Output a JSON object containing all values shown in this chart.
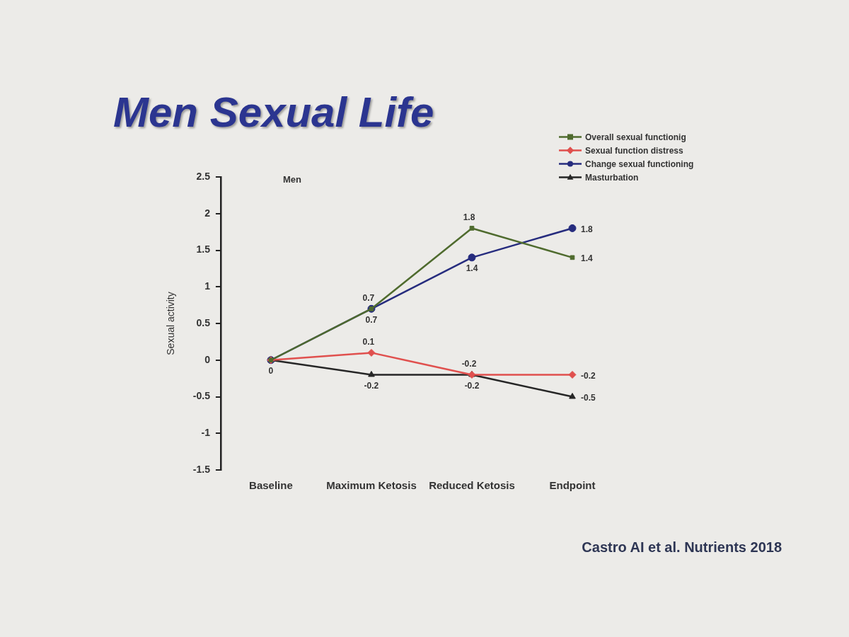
{
  "chart_data": {
    "type": "line",
    "title": "Men Sexual Life",
    "subtitle": "Men",
    "ylabel": "Sexual activity",
    "categories": [
      "Baseline",
      "Maximum Ketosis",
      "Reduced Ketosis",
      "Endpoint"
    ],
    "series": [
      {
        "name": "Overall sexual functionig",
        "color": "#4f6b2e",
        "marker": "square",
        "values": [
          0,
          0.7,
          1.8,
          1.4
        ],
        "value_labels": [
          null,
          "0.7",
          "1.8",
          "1.4"
        ]
      },
      {
        "name": "Sexual function distress",
        "color": "#e0504e",
        "marker": "diamond",
        "values": [
          0,
          0.1,
          -0.2,
          -0.2
        ],
        "value_labels": [
          null,
          "0.1",
          "-0.2",
          "-0.2"
        ]
      },
      {
        "name": "Change sexual functioning",
        "color": "#262c7e",
        "marker": "circle",
        "values": [
          0,
          0.7,
          1.4,
          1.8
        ],
        "value_labels": [
          null,
          "0.7",
          "1.4",
          "1.8"
        ]
      },
      {
        "name": "Masturbation",
        "color": "#262626",
        "marker": "triangle",
        "values": [
          0,
          -0.2,
          -0.2,
          -0.5
        ],
        "value_labels": [
          "0",
          "-0.2",
          "-0.2",
          "-0.5"
        ]
      }
    ],
    "ylim": [
      -1.5,
      2.5
    ],
    "yticks": [
      -1.5,
      -1,
      -0.5,
      0,
      0.5,
      1,
      1.5,
      2,
      2.5
    ],
    "grid": false,
    "legend": "top right",
    "annotations": [
      "Castro AI et al. Nutrients 2018"
    ]
  }
}
